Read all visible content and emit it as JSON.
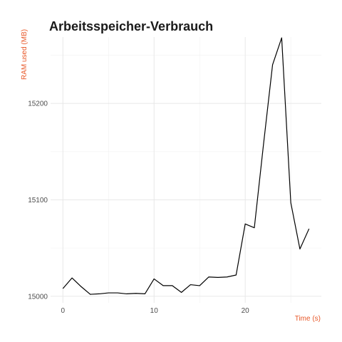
{
  "chart_data": {
    "type": "line",
    "title": "Arbeitsspeicher-Verbrauch",
    "xlabel": "Time (s)",
    "ylabel": "RAM used (MB)",
    "xlim": [
      -1.35,
      28.35
    ],
    "ylim": [
      14993.2,
      15268.8
    ],
    "x_ticks": [
      0,
      10,
      20
    ],
    "y_ticks": [
      15000,
      15100,
      15200
    ],
    "x_minor_ticks": [
      5,
      15,
      25
    ],
    "y_minor_ticks": [
      15050,
      15150,
      15250
    ],
    "grid": true,
    "legend": "none",
    "label_color": "#e8592a",
    "line_color": "#000000",
    "series": [
      {
        "x": [
          0,
          1,
          2,
          3,
          4,
          5,
          6,
          7,
          8,
          9,
          10,
          11,
          12,
          13,
          14,
          15,
          16,
          17,
          18,
          19,
          20,
          21,
          22,
          23,
          24,
          25,
          26,
          27
        ],
        "y": [
          15008,
          15019,
          15010,
          15002,
          15002.5,
          15003.5,
          15003.5,
          15002.5,
          15003,
          15002.5,
          15018,
          15011,
          15011,
          15004,
          15012,
          15011,
          15020,
          15019.5,
          15020,
          15022,
          15075,
          15071,
          15157,
          15240,
          15268,
          15097,
          15049,
          15070
        ]
      }
    ]
  }
}
